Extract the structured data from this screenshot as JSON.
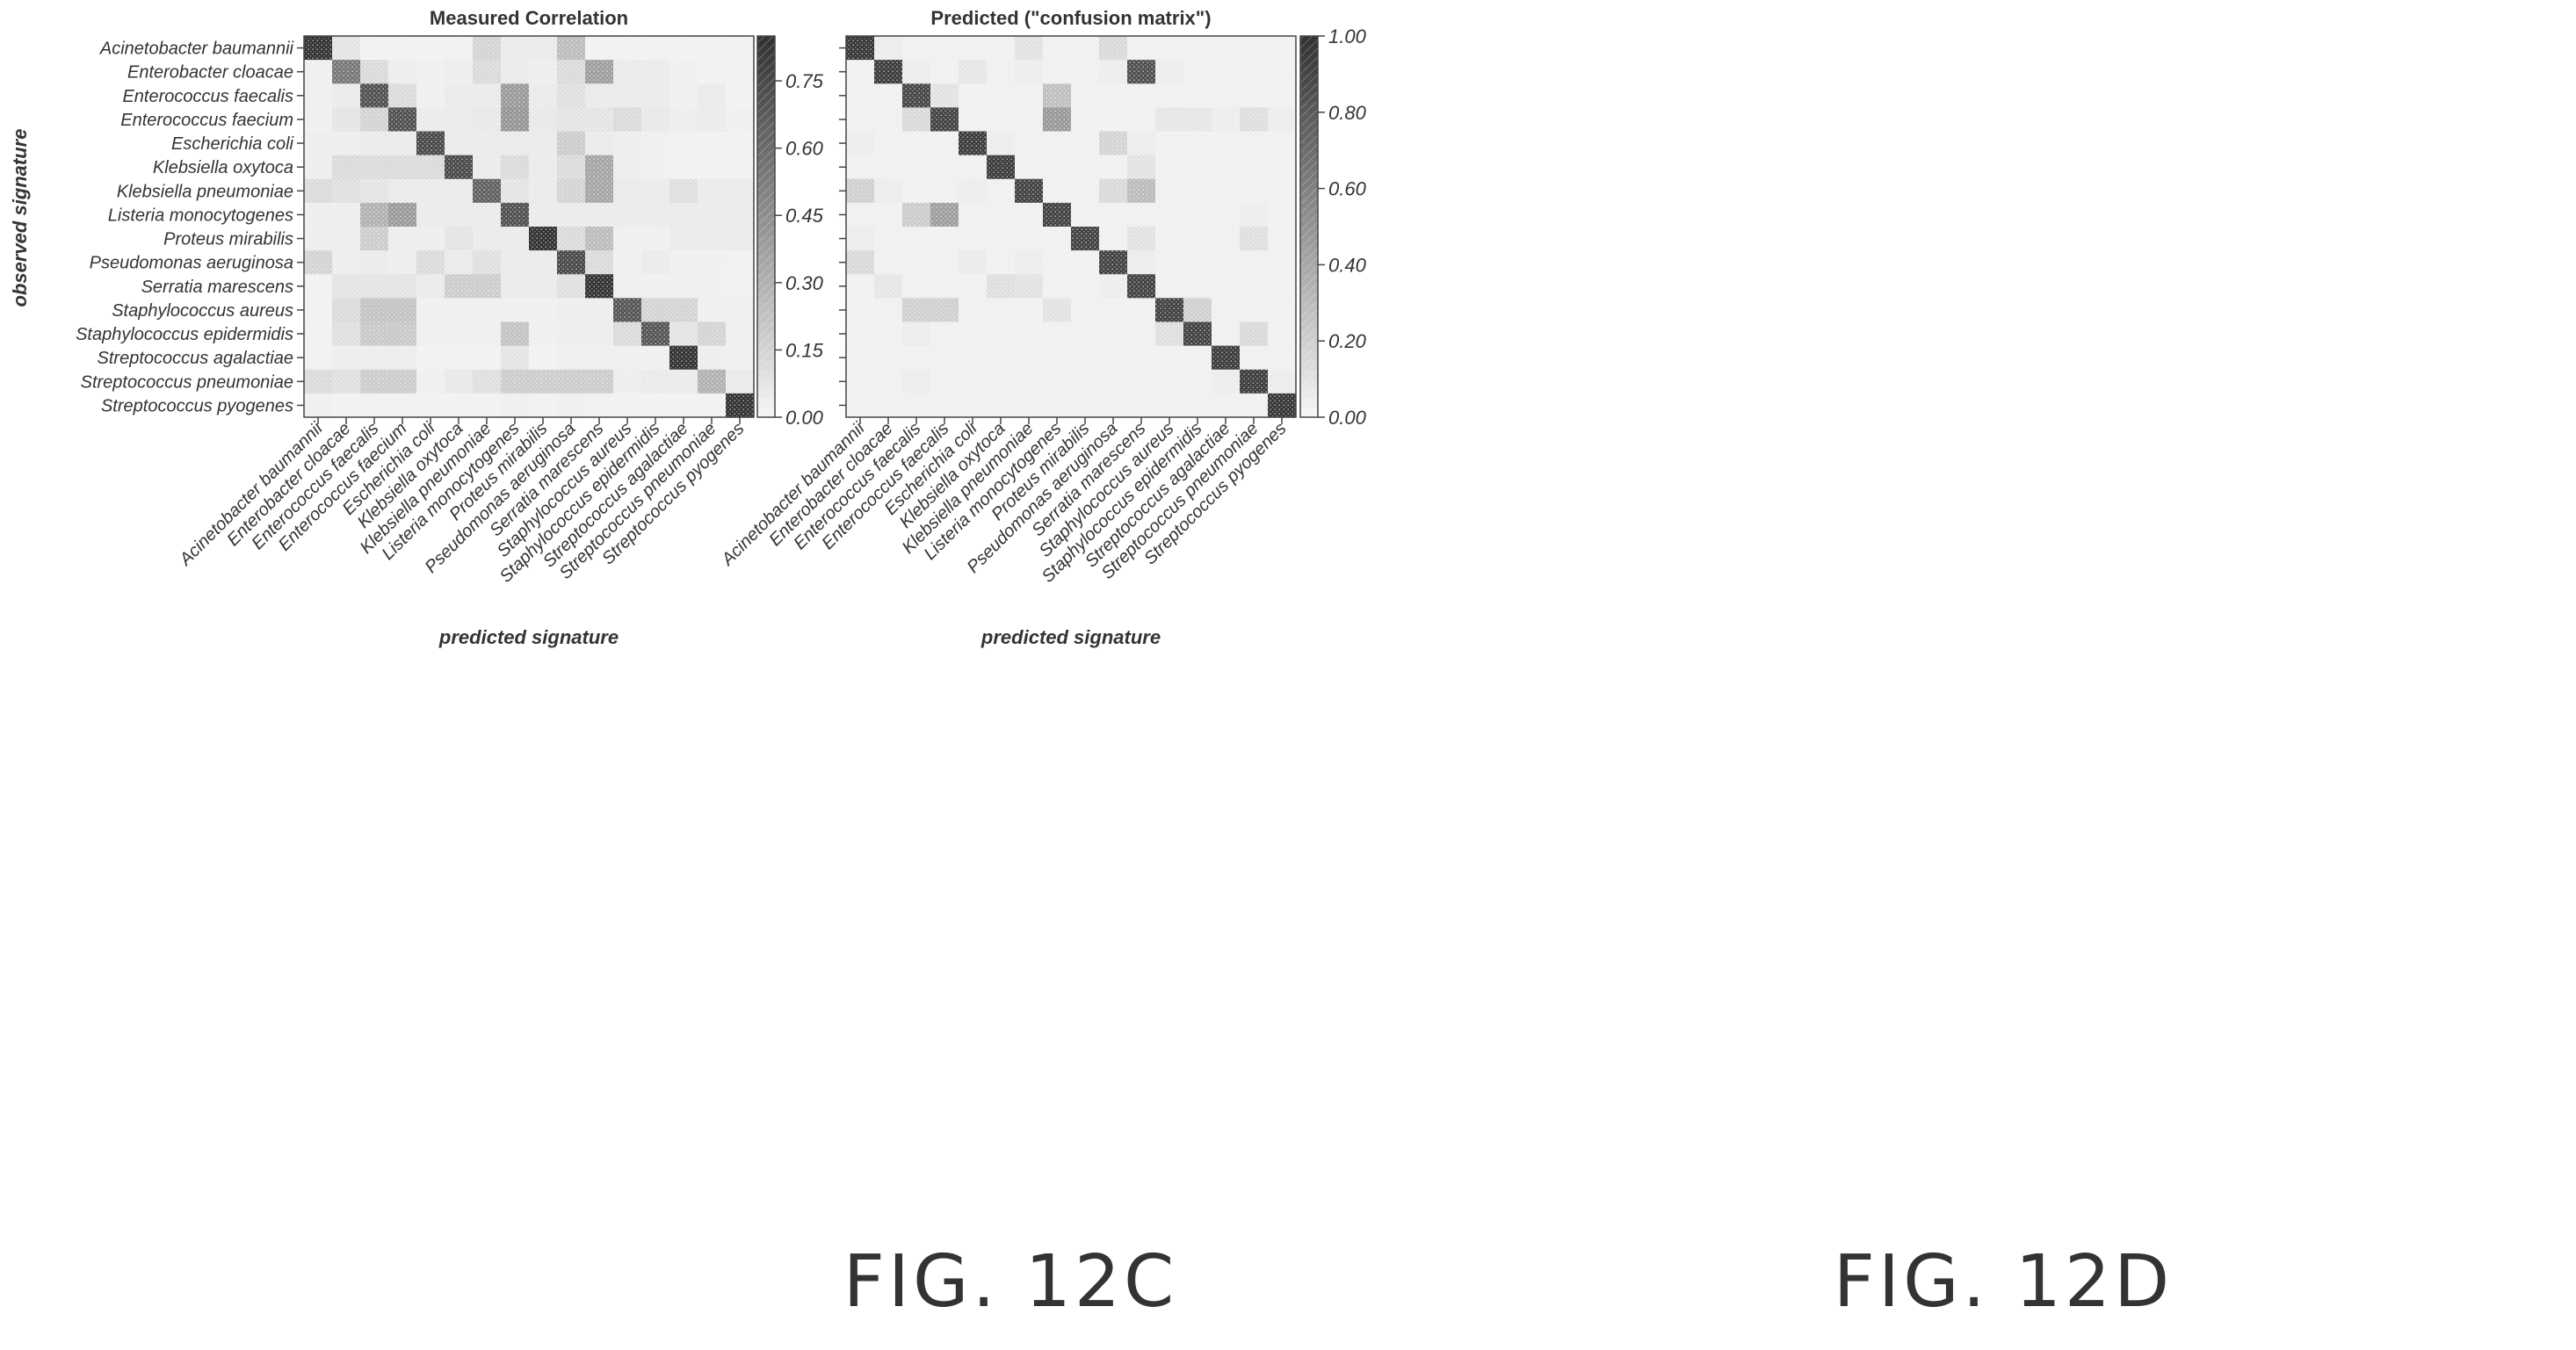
{
  "chart_data": [
    {
      "type": "heatmap",
      "title": "Measured Correlation",
      "xlabel": "predicted signature",
      "ylabel": "observed signature",
      "categories": [
        "Acinetobacter baumannii",
        "Enterobacter cloacae",
        "Enterococcus faecalis",
        "Enterococcus faecium",
        "Escherichia coli",
        "Klebsiella oxytoca",
        "Klebsiella pneumoniae",
        "Listeria monocytogenes",
        "Proteus mirabilis",
        "Pseudomonas aeruginosa",
        "Serratia marescens",
        "Staphylococcus aureus",
        "Staphylococcus epidermidis",
        "Streptococcus agalactiae",
        "Streptococcus pneumoniae",
        "Streptococcus pyogenes"
      ],
      "colorbar": {
        "range": [
          0,
          0.85
        ],
        "ticks": [
          0.0,
          0.15,
          0.3,
          0.45,
          0.6,
          0.75
        ],
        "tick_labels": [
          "0.00",
          "0.15",
          "0.30",
          "0.45",
          "0.60",
          "0.75"
        ]
      },
      "matrix": [
        [
          0.85,
          0.08,
          0.02,
          0.02,
          0.02,
          0.02,
          0.15,
          0.05,
          0.05,
          0.25,
          0.02,
          0.02,
          0.02,
          0.02,
          0.02,
          0.02
        ],
        [
          0.03,
          0.55,
          0.12,
          0.04,
          0.03,
          0.04,
          0.12,
          0.05,
          0.04,
          0.12,
          0.38,
          0.05,
          0.05,
          0.03,
          0.02,
          0.02
        ],
        [
          0.03,
          0.05,
          0.72,
          0.12,
          0.03,
          0.05,
          0.05,
          0.4,
          0.05,
          0.1,
          0.05,
          0.05,
          0.05,
          0.03,
          0.05,
          0.02
        ],
        [
          0.03,
          0.08,
          0.15,
          0.72,
          0.05,
          0.05,
          0.06,
          0.42,
          0.06,
          0.08,
          0.08,
          0.12,
          0.06,
          0.04,
          0.05,
          0.03
        ],
        [
          0.04,
          0.04,
          0.05,
          0.05,
          0.75,
          0.05,
          0.05,
          0.05,
          0.05,
          0.18,
          0.05,
          0.04,
          0.03,
          0.02,
          0.02,
          0.02
        ],
        [
          0.04,
          0.12,
          0.12,
          0.12,
          0.12,
          0.75,
          0.05,
          0.12,
          0.05,
          0.12,
          0.35,
          0.04,
          0.03,
          0.02,
          0.02,
          0.02
        ],
        [
          0.12,
          0.1,
          0.08,
          0.05,
          0.05,
          0.05,
          0.65,
          0.08,
          0.05,
          0.15,
          0.35,
          0.05,
          0.05,
          0.1,
          0.05,
          0.05
        ],
        [
          0.04,
          0.04,
          0.3,
          0.4,
          0.05,
          0.05,
          0.05,
          0.72,
          0.05,
          0.05,
          0.05,
          0.05,
          0.05,
          0.05,
          0.05,
          0.05
        ],
        [
          0.04,
          0.04,
          0.18,
          0.04,
          0.04,
          0.08,
          0.05,
          0.05,
          0.85,
          0.12,
          0.25,
          0.03,
          0.03,
          0.05,
          0.05,
          0.05
        ],
        [
          0.15,
          0.04,
          0.05,
          0.04,
          0.12,
          0.05,
          0.1,
          0.05,
          0.05,
          0.75,
          0.12,
          0.03,
          0.05,
          0.03,
          0.03,
          0.02
        ],
        [
          0.02,
          0.08,
          0.08,
          0.08,
          0.05,
          0.18,
          0.18,
          0.05,
          0.05,
          0.1,
          0.85,
          0.03,
          0.03,
          0.03,
          0.03,
          0.02
        ],
        [
          0.02,
          0.12,
          0.22,
          0.22,
          0.03,
          0.03,
          0.03,
          0.03,
          0.03,
          0.04,
          0.04,
          0.7,
          0.15,
          0.15,
          0.03,
          0.03
        ],
        [
          0.02,
          0.1,
          0.2,
          0.2,
          0.03,
          0.03,
          0.03,
          0.22,
          0.03,
          0.04,
          0.04,
          0.12,
          0.7,
          0.08,
          0.15,
          0.03
        ],
        [
          0.02,
          0.04,
          0.04,
          0.04,
          0.02,
          0.02,
          0.02,
          0.08,
          0.02,
          0.03,
          0.03,
          0.03,
          0.03,
          0.85,
          0.04,
          0.03
        ],
        [
          0.12,
          0.1,
          0.18,
          0.18,
          0.03,
          0.06,
          0.1,
          0.18,
          0.18,
          0.18,
          0.18,
          0.04,
          0.05,
          0.05,
          0.3,
          0.05
        ],
        [
          0.03,
          0.02,
          0.02,
          0.02,
          0.02,
          0.02,
          0.02,
          0.03,
          0.02,
          0.03,
          0.02,
          0.02,
          0.02,
          0.02,
          0.02,
          0.85
        ]
      ]
    },
    {
      "type": "heatmap",
      "title": "Predicted (\"confusion matrix\")",
      "xlabel": "predicted signature",
      "ylabel": "",
      "categories": [
        "Acinetobacter baumannii",
        "Enterobacter cloacae",
        "Enterococcus faecalis",
        "Enterococcus faecalis",
        "Escherichia coli",
        "Klebsiella oxytoca",
        "Klebsiella pneumoniae",
        "Listeria monocytogenes",
        "Proteus mirabilis",
        "Pseudomonas aeruginosa",
        "Serratia marescens",
        "Staphylococcus aureus",
        "Staphylococcus epidermidis",
        "Streptococcus agalactiae",
        "Streptococcus pneumoniae",
        "Streptococcus pyogenes"
      ],
      "colorbar": {
        "range": [
          0,
          1.0
        ],
        "ticks": [
          0.0,
          0.2,
          0.4,
          0.6,
          0.8,
          1.0
        ],
        "tick_labels": [
          "0.00",
          "0.20",
          "0.40",
          "0.60",
          "0.80",
          "1.00"
        ]
      },
      "matrix": [
        [
          0.98,
          0.05,
          0.03,
          0.03,
          0.03,
          0.03,
          0.1,
          0.03,
          0.03,
          0.15,
          0.03,
          0.03,
          0.03,
          0.03,
          0.03,
          0.03
        ],
        [
          0.03,
          0.95,
          0.05,
          0.03,
          0.08,
          0.03,
          0.05,
          0.03,
          0.03,
          0.05,
          0.85,
          0.05,
          0.03,
          0.03,
          0.03,
          0.03
        ],
        [
          0.03,
          0.03,
          0.9,
          0.1,
          0.03,
          0.03,
          0.03,
          0.28,
          0.03,
          0.03,
          0.03,
          0.03,
          0.03,
          0.03,
          0.03,
          0.03
        ],
        [
          0.03,
          0.03,
          0.15,
          0.92,
          0.03,
          0.03,
          0.03,
          0.48,
          0.03,
          0.03,
          0.03,
          0.08,
          0.08,
          0.05,
          0.12,
          0.05
        ],
        [
          0.05,
          0.03,
          0.03,
          0.03,
          0.95,
          0.05,
          0.03,
          0.03,
          0.03,
          0.18,
          0.05,
          0.03,
          0.03,
          0.03,
          0.03,
          0.03
        ],
        [
          0.03,
          0.03,
          0.03,
          0.03,
          0.03,
          0.95,
          0.03,
          0.03,
          0.03,
          0.03,
          0.1,
          0.03,
          0.03,
          0.03,
          0.03,
          0.03
        ],
        [
          0.2,
          0.05,
          0.03,
          0.03,
          0.05,
          0.03,
          0.92,
          0.03,
          0.03,
          0.15,
          0.3,
          0.03,
          0.03,
          0.03,
          0.03,
          0.03
        ],
        [
          0.03,
          0.03,
          0.22,
          0.45,
          0.03,
          0.03,
          0.03,
          0.92,
          0.03,
          0.03,
          0.03,
          0.03,
          0.03,
          0.03,
          0.05,
          0.03
        ],
        [
          0.05,
          0.03,
          0.03,
          0.03,
          0.03,
          0.03,
          0.03,
          0.03,
          0.92,
          0.03,
          0.1,
          0.03,
          0.03,
          0.03,
          0.12,
          0.03
        ],
        [
          0.15,
          0.03,
          0.03,
          0.03,
          0.06,
          0.03,
          0.05,
          0.03,
          0.03,
          0.92,
          0.05,
          0.03,
          0.03,
          0.03,
          0.03,
          0.03
        ],
        [
          0.03,
          0.08,
          0.03,
          0.03,
          0.03,
          0.12,
          0.1,
          0.03,
          0.03,
          0.05,
          0.92,
          0.03,
          0.03,
          0.03,
          0.03,
          0.03
        ],
        [
          0.03,
          0.03,
          0.2,
          0.2,
          0.03,
          0.03,
          0.03,
          0.1,
          0.03,
          0.03,
          0.03,
          0.92,
          0.2,
          0.03,
          0.03,
          0.03
        ],
        [
          0.03,
          0.03,
          0.05,
          0.03,
          0.03,
          0.03,
          0.03,
          0.03,
          0.03,
          0.03,
          0.03,
          0.12,
          0.92,
          0.03,
          0.15,
          0.03
        ],
        [
          0.03,
          0.03,
          0.03,
          0.03,
          0.03,
          0.03,
          0.03,
          0.03,
          0.03,
          0.03,
          0.03,
          0.03,
          0.03,
          0.95,
          0.03,
          0.03
        ],
        [
          0.03,
          0.03,
          0.05,
          0.03,
          0.03,
          0.03,
          0.03,
          0.03,
          0.03,
          0.03,
          0.03,
          0.03,
          0.03,
          0.05,
          0.95,
          0.05
        ],
        [
          0.03,
          0.03,
          0.03,
          0.03,
          0.03,
          0.03,
          0.03,
          0.03,
          0.03,
          0.03,
          0.03,
          0.03,
          0.03,
          0.03,
          0.03,
          0.98
        ]
      ]
    }
  ],
  "captions": [
    "FIG. 12C",
    "FIG. 12D"
  ]
}
